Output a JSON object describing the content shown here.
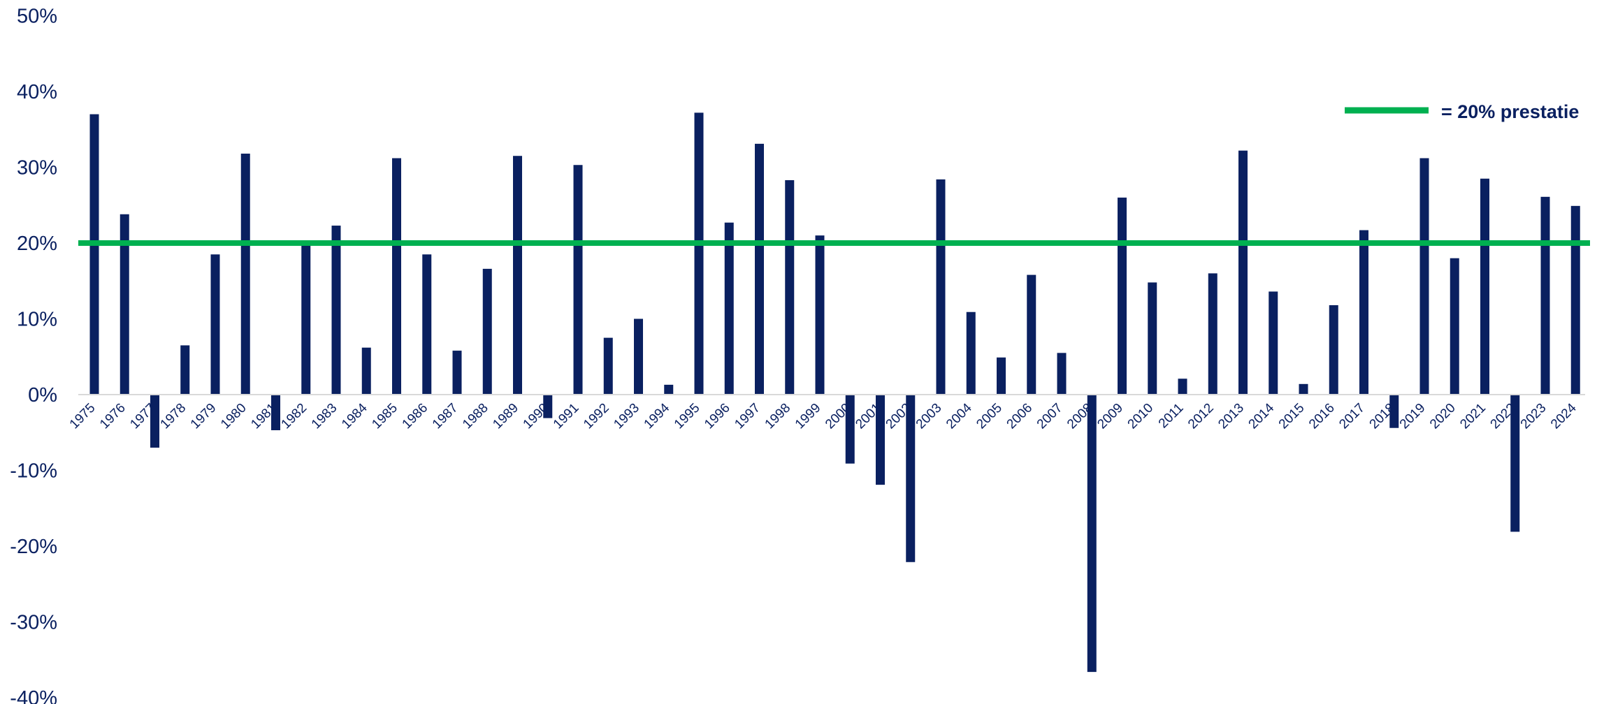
{
  "chart_data": {
    "type": "bar",
    "categories": [
      "1975",
      "1976",
      "1977",
      "1978",
      "1979",
      "1980",
      "1981",
      "1982",
      "1983",
      "1984",
      "1985",
      "1986",
      "1987",
      "1988",
      "1989",
      "1990",
      "1991",
      "1992",
      "1993",
      "1994",
      "1995",
      "1996",
      "1997",
      "1998",
      "1999",
      "2000",
      "2001",
      "2002",
      "2003",
      "2004",
      "2005",
      "2006",
      "2007",
      "2008",
      "2009",
      "2010",
      "2011",
      "2012",
      "2013",
      "2014",
      "2015",
      "2016",
      "2017",
      "2018",
      "2019",
      "2020",
      "2021",
      "2022",
      "2023",
      "2024"
    ],
    "values": [
      37.0,
      23.8,
      -7.0,
      6.5,
      18.5,
      31.8,
      -4.7,
      20.0,
      22.3,
      6.2,
      31.2,
      18.5,
      5.8,
      16.6,
      31.5,
      -3.1,
      30.3,
      7.5,
      10.0,
      1.3,
      37.2,
      22.7,
      33.1,
      28.3,
      21.0,
      -9.1,
      -11.9,
      -22.1,
      28.4,
      10.9,
      4.9,
      15.8,
      5.5,
      -36.6,
      26.0,
      14.8,
      2.1,
      16.0,
      32.2,
      13.6,
      1.4,
      11.8,
      21.7,
      -4.4,
      31.2,
      18.0,
      28.5,
      -18.1,
      26.1,
      24.9
    ],
    "yticks": [
      "50%",
      "40%",
      "30%",
      "20%",
      "10%",
      "0%",
      "-10%",
      "-20%",
      "-30%",
      "-40%"
    ],
    "ylim": [
      -40,
      50
    ],
    "reference_line": {
      "value": 20,
      "label": "= 20% prestatie"
    },
    "legend_position": "top-right",
    "grid": false,
    "bar_color": "#0A2060",
    "line_color": "#00B050",
    "text_color": "#0A2060"
  }
}
